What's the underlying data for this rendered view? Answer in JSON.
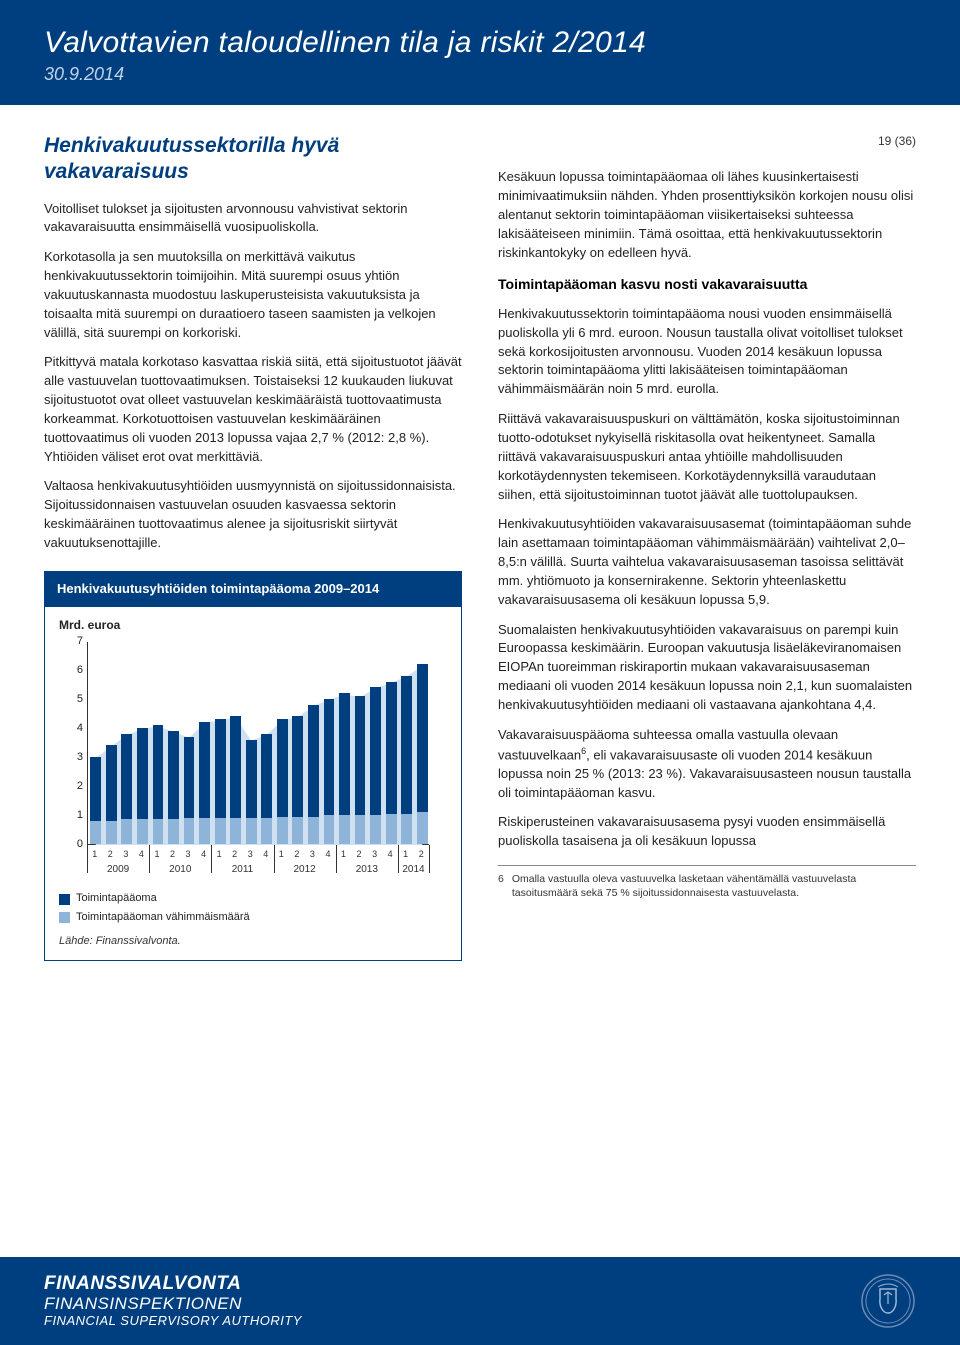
{
  "header": {
    "title": "Valvottavien taloudellinen tila ja riskit 2/2014",
    "date": "30.9.2014"
  },
  "page_num": "19 (36)",
  "left": {
    "heading": "Henkivakuutussektorilla hyvä vakavaraisuus",
    "p1": "Voitolliset tulokset ja sijoitusten arvonnousu vahvistivat sektorin vakavaraisuutta ensimmäisellä vuosipuoliskolla.",
    "p2": "Korkotasolla ja sen muutoksilla on merkittävä vaikutus henkivakuutussektorin toimijoihin. Mitä suurempi osuus yhtiön vakuutuskannasta muodostuu laskuperusteisista vakuutuksista ja toisaalta mitä suurempi on duraatioero taseen saamisten ja velkojen välillä, sitä suurempi on korkoriski.",
    "p3": "Pitkittyvä matala korkotaso kasvattaa riskiä siitä, että sijoitustuotot jäävät alle vastuuvelan tuottovaatimuksen. Toistaiseksi 12 kuukauden liukuvat sijoitustuotot ovat olleet vastuuvelan keskimääräistä tuottovaatimusta korkeammat. Korkotuottoisen vastuuvelan keskimääräinen tuottovaatimus oli vuoden 2013 lopussa vajaa 2,7 % (2012: 2,8 %). Yhtiöiden väliset erot ovat merkittäviä.",
    "p4": "Valtaosa henkivakuutusyhtiöiden uusmyynnistä on sijoitussidonnaisista. Sijoitussidonnaisen vastuuvelan osuuden kasvaessa sektorin keskimääräinen tuottovaatimus alenee ja sijoitusriskit siirtyvät vakuutuksenottajille."
  },
  "right": {
    "p1": "Kesäkuun lopussa toimintapääomaa oli lähes kuusinkertaisesti minimivaatimuksiin nähden. Yhden prosenttiyksikön korkojen nousu olisi alentanut sektorin toimintapääoman viisikertaiseksi suhteessa lakisääteiseen minimiin. Tämä osoittaa, että henkivakuutussektorin riskinkantokyky on edelleen hyvä.",
    "subhead": "Toimintapääoman kasvu nosti vakavaraisuutta",
    "p2": "Henkivakuutussektorin toimintapääoma nousi vuoden ensimmäisellä puoliskolla yli 6 mrd. euroon. Nousun taustalla olivat voitolliset tulokset sekä korkosijoitusten arvonnousu. Vuoden 2014 kesäkuun lopussa sektorin toimintapääoma ylitti lakisääteisen toimintapääoman vähimmäismäärän noin 5 mrd. eurolla.",
    "p3": "Riittävä vakavaraisuuspuskuri on välttämätön, koska sijoitustoiminnan tuotto-odotukset nykyisellä riskitasolla ovat heikentyneet. Samalla riittävä vakavaraisuuspuskuri antaa yhtiöille mahdollisuuden korkotäydennysten tekemiseen. Korkotäydennyksillä varaudutaan siihen, että sijoitustoiminnan tuotot jäävät alle tuottolupauksen.",
    "p4": "Henkivakuutusyhtiöiden vakavaraisuusasemat (toimintapääoman suhde lain asettamaan toimintapääoman vähimmäismäärään) vaihtelivat 2,0–8,5:n välillä. Suurta vaihtelua vakavaraisuusaseman tasoissa selittävät mm. yhtiömuoto ja konsernirakenne. Sektorin yhteenlaskettu vakavaraisuusasema oli kesäkuun lopussa 5,9.",
    "p5": "Suomalaisten henkivakuutusyhtiöiden vakavaraisuus on parempi kuin Euroopassa keskimäärin. Euroopan vakuutusja lisäeläkeviranomaisen EIOPAn tuoreimman riskiraportin mukaan vakavaraisuusaseman mediaani oli vuoden 2014 kesäkuun lopussa noin 2,1, kun suomalaisten henkivakuutusyhtiöiden mediaani oli vastaavana ajankohtana 4,4.",
    "p6a": "Vakavaraisuuspääoma suhteessa omalla vastuulla olevaan vastuuvelkaan",
    "p6b": ", eli vakavaraisuusaste oli vuoden 2014 kesäkuun lopussa noin 25 % (2013: 23 %). Vakavaraisuusasteen nousun taustalla oli toimintapääoman kasvu.",
    "p7": "Riskiperusteinen vakavaraisuusasema pysyi vuoden ensimmäisellä puoliskolla tasaisena ja oli kesäkuun lopussa",
    "footnote_num": "6",
    "footnote": "Omalla vastuulla oleva vastuuvelka lasketaan vähentämällä vastuuvelasta tasoitusmäärä sekä 75 % sijoitussidonnaisesta vastuuvelasta."
  },
  "chart": {
    "title": "Henkivakuutusyhtiöiden toimintapääoma 2009–2014",
    "ylabel": "Mrd. euroa",
    "ylim": [
      0,
      7
    ],
    "yticks": [
      0,
      1,
      2,
      3,
      4,
      5,
      6,
      7
    ],
    "years": [
      2009,
      2010,
      2011,
      2012,
      2013,
      2014
    ],
    "quarters_per_year": [
      4,
      4,
      4,
      4,
      4,
      2
    ],
    "series": [
      {
        "label": "Toimintapääoma",
        "color": "#003f7f",
        "values": [
          3.0,
          3.4,
          3.8,
          4.0,
          4.1,
          3.9,
          3.7,
          4.2,
          4.3,
          4.4,
          3.6,
          3.8,
          4.3,
          4.4,
          4.8,
          5.0,
          5.2,
          5.1,
          5.4,
          5.6,
          5.8,
          6.2
        ]
      },
      {
        "label": "Toimintapääoman vähimmäismäärä",
        "color": "#8fb4d9",
        "values": [
          0.8,
          0.8,
          0.85,
          0.85,
          0.85,
          0.85,
          0.9,
          0.9,
          0.9,
          0.9,
          0.9,
          0.9,
          0.95,
          0.95,
          0.95,
          1.0,
          1.0,
          1.0,
          1.0,
          1.05,
          1.05,
          1.1
        ]
      }
    ],
    "source": "Lähde: Finanssivalvonta.",
    "colors": {
      "axis": "#333333",
      "grid": "#cccccc",
      "background": "#ffffff"
    },
    "bar_width_ratio": 0.7
  },
  "footer": {
    "line1": "FINANSSIVALVONTA",
    "line2": "FINANSINSPEKTIONEN",
    "line3": "FINANCIAL SUPERVISORY AUTHORITY"
  }
}
